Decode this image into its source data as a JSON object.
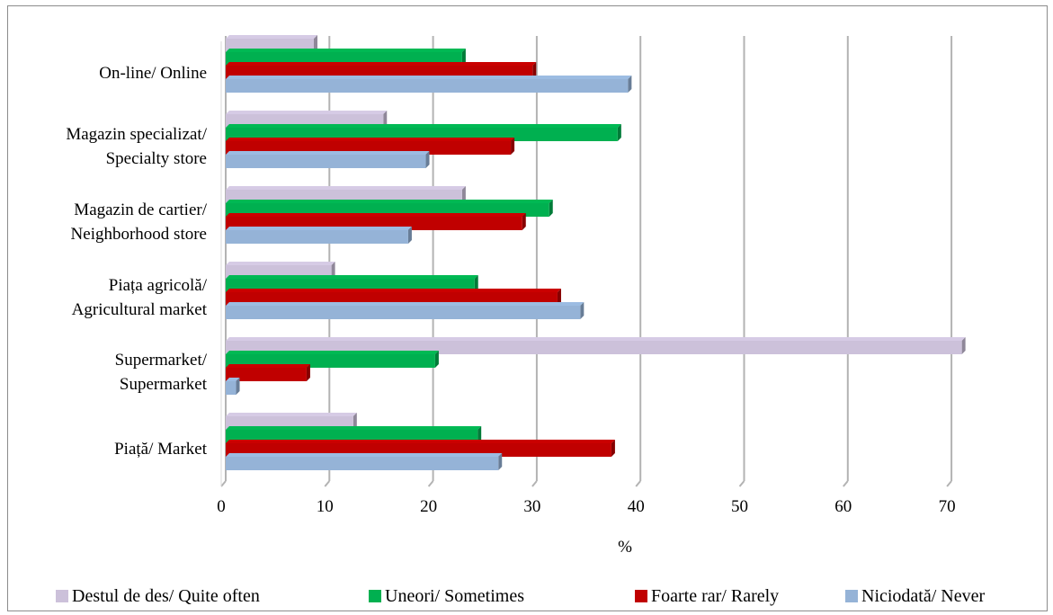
{
  "chart_data": {
    "type": "bar",
    "orientation": "horizontal",
    "categories": [
      [
        "On-line/ Online"
      ],
      [
        "Magazin specializat/",
        "Specialty store"
      ],
      [
        "Magazin de cartier/",
        "Neighborhood store"
      ],
      [
        "Piața agricolă/",
        "Agricultural market"
      ],
      [
        "Supermarket/",
        "Supermarket"
      ],
      [
        "Piață/ Market"
      ]
    ],
    "series": [
      {
        "name": "Destul de des/ Quite often",
        "color": "#ccc1da",
        "values": [
          8.5,
          15.2,
          22.8,
          10.2,
          71.0,
          12.3
        ]
      },
      {
        "name": "Uneori/ Sometimes",
        "color": "#00b050",
        "values": [
          22.8,
          37.8,
          31.2,
          24.0,
          20.2,
          24.3
        ]
      },
      {
        "name": "Foarte rar/ Rarely",
        "color": "#c00000",
        "values": [
          29.6,
          27.5,
          28.6,
          32.0,
          7.8,
          37.2
        ]
      },
      {
        "name": "Niciodată/ Never",
        "color": "#95b3d7",
        "values": [
          38.8,
          19.3,
          17.6,
          34.2,
          1.0,
          26.3
        ]
      }
    ],
    "xlabel": "%",
    "ylabel": "",
    "xlim": [
      0,
      70
    ],
    "xticks": [
      0,
      10,
      20,
      30,
      40,
      50,
      60,
      70
    ],
    "grid": true,
    "legend_position": "bottom"
  }
}
